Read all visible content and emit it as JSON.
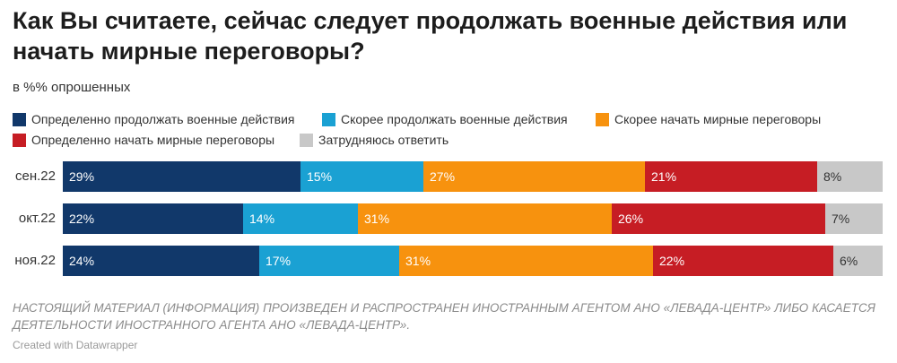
{
  "header": {
    "title": "Как Вы считаете, сейчас следует продолжать военные действия или начать мирные переговоры?",
    "subtitle": "в %% опрошенных"
  },
  "colors": {
    "definitely_continue": "#11386a",
    "rather_continue": "#1aa1d3",
    "rather_negotiate": "#f7920e",
    "definitely_negotiate": "#c61d24",
    "hard_to_say": "#c8c8c8"
  },
  "chart_data": {
    "type": "bar",
    "orientation": "horizontal",
    "stacked": true,
    "categories": [
      "сен.22",
      "окт.22",
      "ноя.22"
    ],
    "series": [
      {
        "name": "Определенно продолжать военные действия",
        "values": [
          29,
          22,
          24
        ],
        "labels": [
          "29%",
          "22%",
          "24%"
        ],
        "color": "#11386a",
        "text_color": "#ffffff"
      },
      {
        "name": "Скорее продолжать военные действия",
        "values": [
          15,
          14,
          17
        ],
        "labels": [
          "15%",
          "14%",
          "17%"
        ],
        "color": "#1aa1d3",
        "text_color": "#ffffff"
      },
      {
        "name": "Скорее начать мирные переговоры",
        "values": [
          27,
          31,
          31
        ],
        "labels": [
          "27%",
          "31%",
          "31%"
        ],
        "color": "#f7920e",
        "text_color": "#ffffff"
      },
      {
        "name": "Определенно начать мирные переговоры",
        "values": [
          21,
          26,
          22
        ],
        "labels": [
          "21%",
          "26%",
          "22%"
        ],
        "color": "#c61d24",
        "text_color": "#ffffff"
      },
      {
        "name": "Затрудняюсь ответить",
        "values": [
          8,
          7,
          6
        ],
        "labels": [
          "8%",
          "7%",
          "6%"
        ],
        "color": "#c8c8c8",
        "text_color": "#333333"
      }
    ],
    "legend_position": "top-left",
    "grid": false
  },
  "footer": {
    "notes": "НАСТОЯЩИЙ МАТЕРИАЛ (ИНФОРМАЦИЯ) ПРОИЗВЕДЕН И РАСПРОСТРАНЕН ИНОСТРАННЫМ АГЕНТОМ АНО «ЛЕВАДА-ЦЕНТР» ЛИБО КАСАЕТСЯ ДЕЯТЕЛЬНОСТИ ИНОСТРАННОГО АГЕНТА АНО «ЛЕВАДА-ЦЕНТР».",
    "credit": "Created with Datawrapper"
  }
}
